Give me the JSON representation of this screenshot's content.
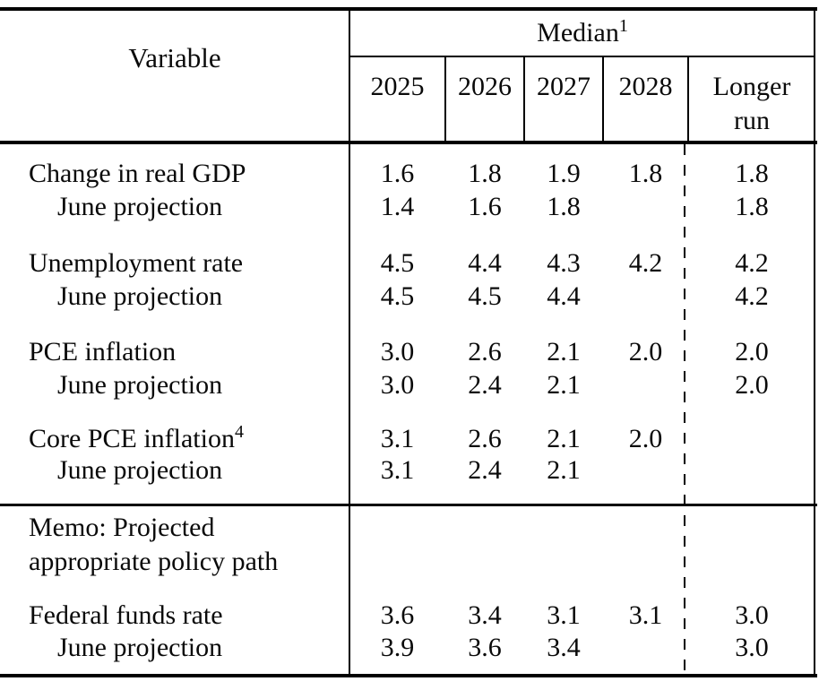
{
  "table": {
    "header": {
      "variable": "Variable",
      "median": "Median",
      "median_sup": "1",
      "year_2025": "2025",
      "year_2026": "2026",
      "year_2027": "2027",
      "year_2028": "2028",
      "longer_run_line1": "Longer",
      "longer_run_line2": "run"
    },
    "rows": [
      {
        "label": "Change in real GDP",
        "sup": "",
        "v2025": "1.6",
        "v2026": "1.8",
        "v2027": "1.9",
        "v2028": "1.8",
        "longer_run": "1.8"
      },
      {
        "label": "June projection",
        "sup": "",
        "v2025": "1.4",
        "v2026": "1.6",
        "v2027": "1.8",
        "v2028": "",
        "longer_run": "1.8"
      },
      {
        "label": "Unemployment rate",
        "sup": "",
        "v2025": "4.5",
        "v2026": "4.4",
        "v2027": "4.3",
        "v2028": "4.2",
        "longer_run": "4.2"
      },
      {
        "label": "June projection",
        "sup": "",
        "v2025": "4.5",
        "v2026": "4.5",
        "v2027": "4.4",
        "v2028": "",
        "longer_run": "4.2"
      },
      {
        "label": "PCE inflation",
        "sup": "",
        "v2025": "3.0",
        "v2026": "2.6",
        "v2027": "2.1",
        "v2028": "2.0",
        "longer_run": "2.0"
      },
      {
        "label": "June projection",
        "sup": "",
        "v2025": "3.0",
        "v2026": "2.4",
        "v2027": "2.1",
        "v2028": "",
        "longer_run": "2.0"
      },
      {
        "label": "Core PCE inflation",
        "sup": "4",
        "v2025": "3.1",
        "v2026": "2.6",
        "v2027": "2.1",
        "v2028": "2.0",
        "longer_run": ""
      },
      {
        "label": "June projection",
        "sup": "",
        "v2025": "3.1",
        "v2026": "2.4",
        "v2027": "2.1",
        "v2028": "",
        "longer_run": ""
      },
      {
        "label": "Federal funds rate",
        "sup": "",
        "v2025": "3.6",
        "v2026": "3.4",
        "v2027": "3.1",
        "v2028": "3.1",
        "longer_run": "3.0"
      },
      {
        "label": "June projection",
        "sup": "",
        "v2025": "3.9",
        "v2026": "3.6",
        "v2027": "3.4",
        "v2028": "",
        "longer_run": "3.0"
      }
    ],
    "memo_line1": "Memo: Projected",
    "memo_line2": "appropriate policy path"
  }
}
